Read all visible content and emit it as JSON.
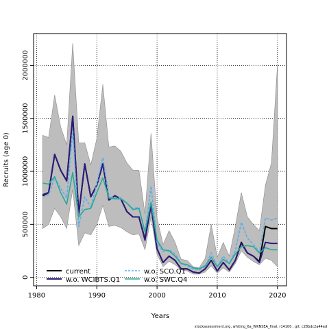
{
  "chart_data": {
    "type": "line",
    "xlabel": "Years",
    "ylabel": "Recruits (age 0)",
    "xlim": [
      1979.5,
      2021.5
    ],
    "ylim": [
      -80000,
      2300000
    ],
    "x_ticks": [
      1980,
      1990,
      2000,
      2010,
      2020
    ],
    "x_tick_labels": [
      "1980",
      "1990",
      "2000",
      "2010",
      "2020"
    ],
    "y_ticks": [
      0,
      500000,
      1000000,
      1500000,
      2000000
    ],
    "y_tick_labels": [
      "0",
      "500000",
      "1000000",
      "1500000",
      "2000000"
    ],
    "grid": "dotted",
    "legend_position": "bottom-left",
    "x": [
      1981,
      1982,
      1983,
      1984,
      1985,
      1986,
      1987,
      1988,
      1989,
      1990,
      1991,
      1992,
      1993,
      1994,
      1995,
      1996,
      1997,
      1998,
      1999,
      2000,
      2001,
      2002,
      2003,
      2004,
      2005,
      2006,
      2007,
      2008,
      2009,
      2010,
      2011,
      2012,
      2013,
      2014,
      2015,
      2016,
      2017,
      2018,
      2019,
      2020
    ],
    "confidence_band": {
      "upper": [
        1340000,
        1320000,
        1720000,
        1420000,
        1250000,
        2210000,
        1270000,
        1270000,
        1060000,
        1310000,
        1820000,
        1230000,
        1240000,
        1190000,
        1080000,
        1010000,
        1010000,
        600000,
        1360000,
        560000,
        310000,
        440000,
        330000,
        170000,
        160000,
        100000,
        90000,
        180000,
        500000,
        190000,
        330000,
        200000,
        480000,
        800000,
        570000,
        500000,
        440000,
        870000,
        1080000,
        2010000
      ],
      "lower": [
        460000,
        500000,
        650000,
        570000,
        460000,
        830000,
        300000,
        420000,
        400000,
        500000,
        680000,
        480000,
        490000,
        470000,
        430000,
        400000,
        410000,
        260000,
        570000,
        220000,
        100000,
        150000,
        120000,
        70000,
        60000,
        30000,
        30000,
        50000,
        110000,
        40000,
        90000,
        50000,
        130000,
        250000,
        190000,
        150000,
        120000,
        180000,
        160000,
        100000
      ]
    },
    "series": [
      {
        "name": "current",
        "color": "#000000",
        "dash": "solid",
        "values": [
          770000,
          800000,
          1160000,
          1010000,
          910000,
          1520000,
          600000,
          1070000,
          760000,
          870000,
          1070000,
          730000,
          770000,
          740000,
          620000,
          570000,
          570000,
          360000,
          680000,
          270000,
          140000,
          200000,
          160000,
          80000,
          80000,
          50000,
          40000,
          80000,
          160000,
          60000,
          140000,
          70000,
          160000,
          330000,
          230000,
          200000,
          150000,
          480000,
          460000,
          460000
        ]
      },
      {
        "name": "w.o. WCIBTS.Q1",
        "color": "#2e1a7a",
        "dash": "solid",
        "values": [
          780000,
          800000,
          1160000,
          1010000,
          910000,
          1520000,
          600000,
          1070000,
          760000,
          870000,
          1070000,
          730000,
          770000,
          740000,
          620000,
          570000,
          570000,
          350000,
          680000,
          270000,
          140000,
          200000,
          160000,
          80000,
          80000,
          50000,
          40000,
          80000,
          160000,
          60000,
          140000,
          70000,
          160000,
          320000,
          230000,
          200000,
          140000,
          330000,
          320000,
          320000
        ]
      },
      {
        "name": "w.o. SCO.Q1",
        "color": "#5aaee8",
        "dash": "dashed",
        "values": [
          760000,
          780000,
          940000,
          840000,
          750000,
          1380000,
          480000,
          760000,
          660000,
          880000,
          1130000,
          760000,
          750000,
          750000,
          700000,
          650000,
          660000,
          420000,
          860000,
          330000,
          240000,
          260000,
          220000,
          130000,
          110000,
          80000,
          70000,
          100000,
          230000,
          100000,
          200000,
          130000,
          250000,
          520000,
          370000,
          310000,
          240000,
          560000,
          540000,
          560000
        ]
      },
      {
        "name": "w.o. SWC.Q4",
        "color": "#2aa89a",
        "dash": "solid",
        "values": [
          890000,
          880000,
          950000,
          800000,
          690000,
          990000,
          570000,
          640000,
          650000,
          800000,
          940000,
          750000,
          740000,
          740000,
          700000,
          640000,
          650000,
          430000,
          710000,
          350000,
          260000,
          250000,
          200000,
          130000,
          120000,
          90000,
          80000,
          110000,
          190000,
          100000,
          170000,
          130000,
          220000,
          290000,
          300000,
          290000,
          230000,
          280000,
          260000,
          260000
        ]
      }
    ]
  },
  "footer": {
    "source_text": "stockassessment.org,  whiting_6a_WKNSEA_final,  r14100 ,  git: c28bdc2a44ad"
  }
}
